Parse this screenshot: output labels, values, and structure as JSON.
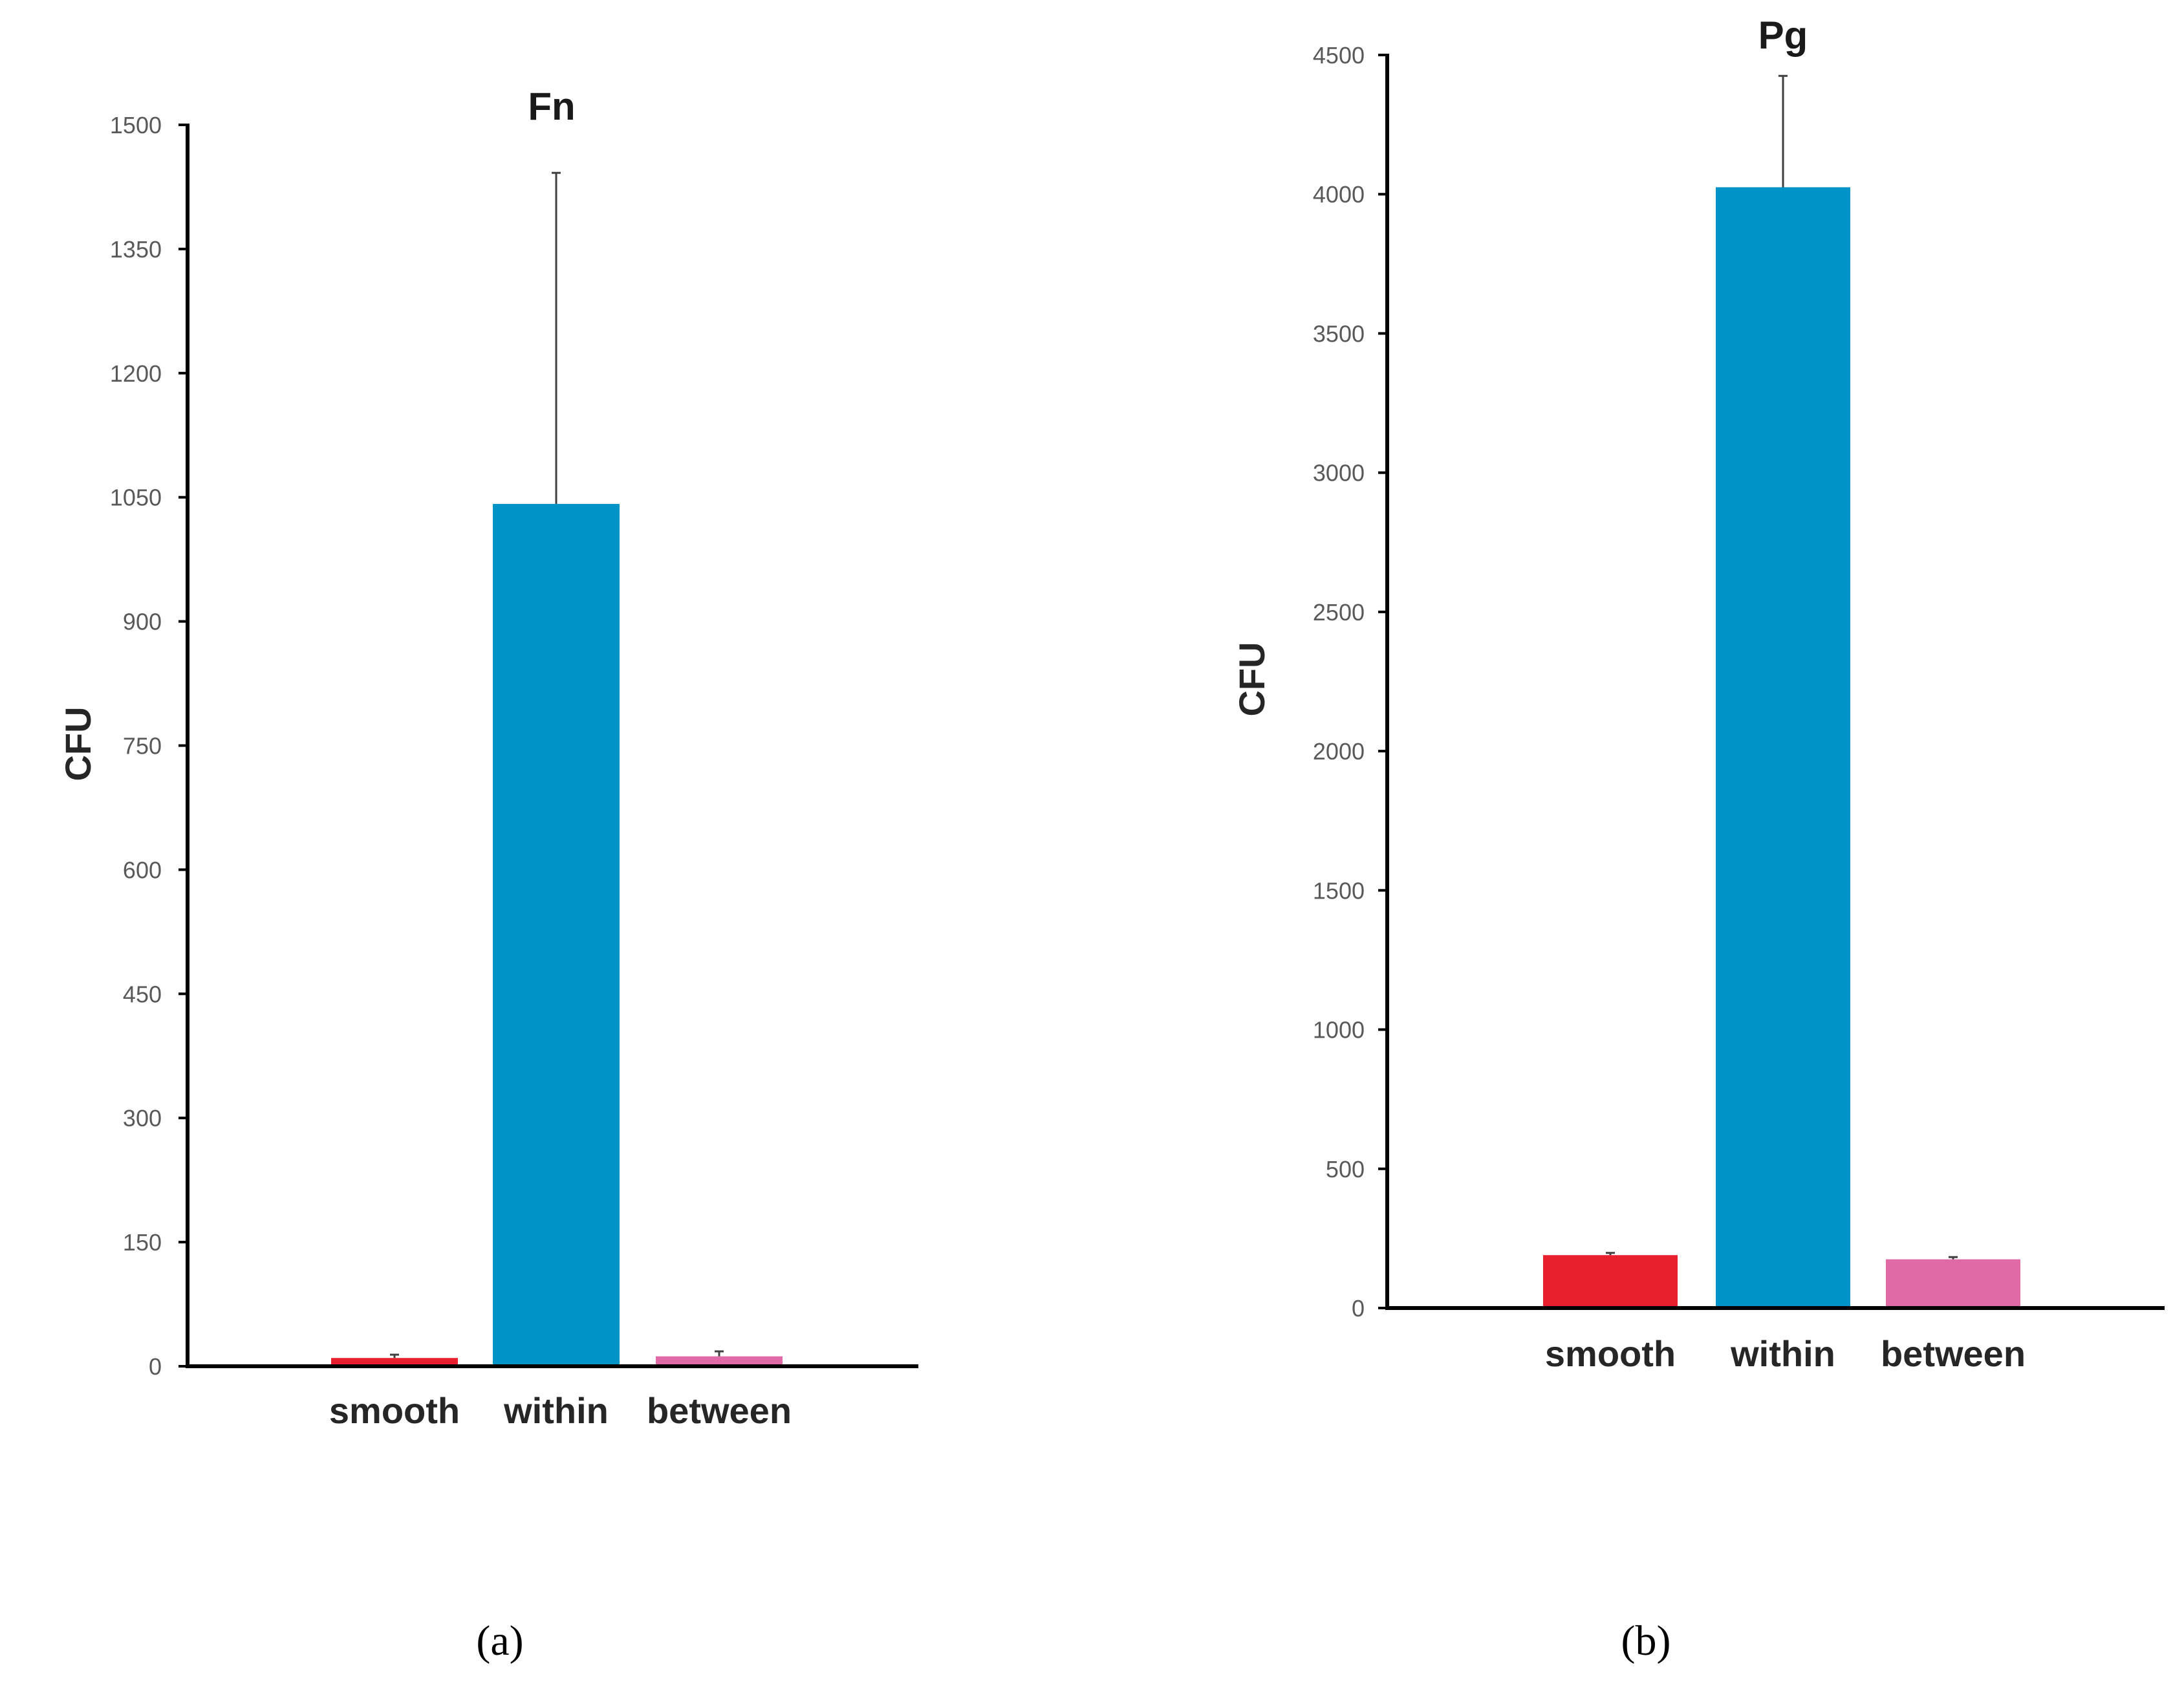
{
  "chart_data": [
    {
      "type": "bar",
      "panel_label": "(a)",
      "title": "Fn",
      "xlabel": "",
      "ylabel": "CFU",
      "categories": [
        "smooth",
        "within",
        "between"
      ],
      "values": [
        10,
        1042,
        12
      ],
      "error_upper": [
        14,
        1442,
        18
      ],
      "ylim": [
        0,
        1500
      ],
      "yticks": [
        "0",
        "150",
        "300",
        "450",
        "600",
        "750",
        "900",
        "1050",
        "1200",
        "1350",
        "1500"
      ],
      "colors": [
        "#e8202e",
        "#0093c8",
        "#e06aa6"
      ],
      "grid": false,
      "legend": "none"
    },
    {
      "type": "bar",
      "panel_label": "(b)",
      "title": "Pg",
      "xlabel": "",
      "ylabel": "CFU",
      "categories": [
        "smooth",
        "within",
        "between"
      ],
      "values": [
        190,
        4025,
        175
      ],
      "error_upper": [
        198,
        4425,
        183
      ],
      "ylim": [
        0,
        4500
      ],
      "yticks": [
        "0",
        "500",
        "1000",
        "1500",
        "2000",
        "2500",
        "3000",
        "3500",
        "4000",
        "4500"
      ],
      "colors": [
        "#e8202e",
        "#0093c8",
        "#e06aa6"
      ],
      "grid": false,
      "legend": "none"
    }
  ]
}
